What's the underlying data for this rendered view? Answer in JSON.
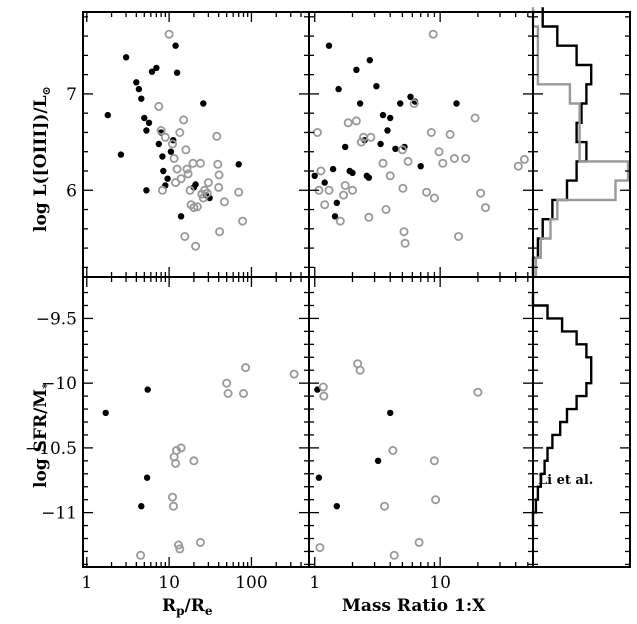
{
  "figure": {
    "colors": {
      "filled_points": "#000000",
      "open_points": "#999999",
      "frame": "#000000"
    },
    "x_axis_labels": {
      "left_main": "R",
      "left_sub": "p",
      "left_sep": "/R",
      "left_sub2": "e",
      "middle": "Mass Ratio 1:X"
    },
    "y_axis_labels": {
      "top_prefix": "log L([OIII])/L",
      "top_sun_symbol": "⊙",
      "bottom_prefix": "log SFR/M",
      "bottom_sub": "*"
    },
    "annotation": "Li et al.",
    "ticks": {
      "x_log": [
        {
          "v": 1,
          "label": "1"
        },
        {
          "v": 10,
          "label": "10"
        },
        {
          "v": 100,
          "label": "100"
        }
      ],
      "y_top": [
        {
          "v": 6,
          "label": "6"
        },
        {
          "v": 7,
          "label": "7"
        }
      ],
      "y_bottom": [
        {
          "v": -9.5,
          "label": "−9.5"
        },
        {
          "v": -10,
          "label": "−10"
        },
        {
          "v": -10.5,
          "label": "−10.5"
        },
        {
          "v": -11,
          "label": "−11"
        }
      ]
    }
  },
  "chart_data": [
    {
      "type": "scatter",
      "panel": "top-left",
      "xlabel": "Rp/Re",
      "ylabel": "log L([OIII])/L⊙",
      "xscale": "log",
      "xlim": [
        0.9,
        500
      ],
      "ylim": [
        5.1,
        7.85
      ],
      "series": [
        {
          "marker": "filled",
          "points": [
            [
              1.8,
              6.78
            ],
            [
              2.6,
              6.37
            ],
            [
              3.0,
              7.38
            ],
            [
              4.0,
              7.12
            ],
            [
              4.3,
              7.05
            ],
            [
              4.6,
              6.95
            ],
            [
              5.0,
              6.75
            ],
            [
              5.3,
              6.62
            ],
            [
              5.7,
              6.7
            ],
            [
              5.3,
              6.0
            ],
            [
              6.2,
              7.23
            ],
            [
              7.0,
              7.27
            ],
            [
              7.5,
              6.48
            ],
            [
              8.0,
              6.6
            ],
            [
              8.3,
              6.35
            ],
            [
              8.5,
              6.2
            ],
            [
              9.0,
              6.05
            ],
            [
              9.6,
              6.12
            ],
            [
              10.5,
              6.4
            ],
            [
              11.2,
              6.52
            ],
            [
              12.0,
              7.5
            ],
            [
              12.5,
              7.22
            ],
            [
              14.0,
              5.73
            ],
            [
              20.0,
              6.03
            ],
            [
              21.0,
              6.06
            ],
            [
              26.0,
              6.9
            ],
            [
              28.0,
              5.95
            ],
            [
              31.0,
              5.92
            ],
            [
              70.0,
              6.27
            ]
          ]
        },
        {
          "marker": "open",
          "points": [
            [
              7.5,
              6.87
            ],
            [
              8.0,
              6.62
            ],
            [
              8.3,
              6.0
            ],
            [
              9.0,
              6.55
            ],
            [
              10.0,
              7.62
            ],
            [
              11.0,
              6.48
            ],
            [
              11.5,
              6.33
            ],
            [
              12.0,
              6.08
            ],
            [
              12.5,
              6.22
            ],
            [
              13.5,
              6.6
            ],
            [
              14.0,
              6.12
            ],
            [
              15.0,
              6.73
            ],
            [
              15.5,
              5.52
            ],
            [
              16.0,
              6.42
            ],
            [
              16.5,
              6.22
            ],
            [
              17.0,
              6.17
            ],
            [
              18.0,
              6.0
            ],
            [
              18.5,
              5.85
            ],
            [
              19.5,
              6.28
            ],
            [
              20.0,
              5.82
            ],
            [
              21.0,
              5.42
            ],
            [
              22.0,
              5.83
            ],
            [
              24.0,
              6.28
            ],
            [
              25.0,
              5.96
            ],
            [
              26.0,
              5.92
            ],
            [
              27.0,
              6.0
            ],
            [
              29.0,
              5.97
            ],
            [
              30.0,
              6.08
            ],
            [
              38.0,
              6.56
            ],
            [
              39.0,
              6.27
            ],
            [
              40.0,
              6.03
            ],
            [
              40.5,
              6.16
            ],
            [
              41.0,
              5.57
            ],
            [
              47.0,
              5.88
            ],
            [
              70.0,
              5.98
            ],
            [
              78.0,
              5.68
            ]
          ]
        }
      ]
    },
    {
      "type": "scatter",
      "panel": "top-middle",
      "xlabel": "Mass Ratio 1:X",
      "ylabel": "log L([OIII])/L⊙",
      "xscale": "log",
      "xlim": [
        0.9,
        55
      ],
      "ylim": [
        5.1,
        7.85
      ],
      "series": [
        {
          "marker": "filled",
          "points": [
            [
              1.0,
              6.15
            ],
            [
              1.2,
              6.08
            ],
            [
              1.3,
              7.5
            ],
            [
              1.4,
              6.22
            ],
            [
              1.45,
              5.73
            ],
            [
              1.5,
              5.87
            ],
            [
              1.55,
              7.05
            ],
            [
              1.75,
              6.45
            ],
            [
              1.9,
              6.2
            ],
            [
              2.0,
              6.18
            ],
            [
              2.15,
              7.25
            ],
            [
              2.3,
              6.9
            ],
            [
              2.5,
              6.52
            ],
            [
              2.6,
              6.15
            ],
            [
              2.7,
              6.13
            ],
            [
              2.75,
              7.35
            ],
            [
              3.1,
              7.08
            ],
            [
              3.35,
              6.48
            ],
            [
              3.5,
              6.78
            ],
            [
              3.8,
              6.62
            ],
            [
              4.0,
              6.75
            ],
            [
              4.4,
              6.43
            ],
            [
              4.8,
              6.9
            ],
            [
              5.2,
              6.45
            ],
            [
              5.8,
              6.97
            ],
            [
              6.3,
              6.92
            ],
            [
              7.0,
              6.25
            ],
            [
              13.5,
              6.9
            ]
          ]
        },
        {
          "marker": "open",
          "points": [
            [
              1.05,
              6.6
            ],
            [
              1.08,
              6.0
            ],
            [
              1.12,
              6.2
            ],
            [
              1.2,
              5.85
            ],
            [
              1.3,
              6.0
            ],
            [
              1.6,
              5.68
            ],
            [
              1.7,
              5.95
            ],
            [
              1.75,
              6.05
            ],
            [
              1.85,
              6.7
            ],
            [
              2.0,
              6.0
            ],
            [
              2.15,
              6.72
            ],
            [
              2.35,
              6.5
            ],
            [
              2.45,
              6.55
            ],
            [
              2.7,
              5.72
            ],
            [
              2.8,
              6.55
            ],
            [
              3.5,
              6.28
            ],
            [
              3.7,
              5.8
            ],
            [
              4.0,
              6.15
            ],
            [
              5.0,
              6.42
            ],
            [
              5.05,
              6.02
            ],
            [
              5.15,
              5.57
            ],
            [
              5.25,
              5.45
            ],
            [
              5.55,
              6.3
            ],
            [
              6.2,
              6.9
            ],
            [
              7.8,
              5.98
            ],
            [
              8.5,
              6.6
            ],
            [
              8.8,
              7.62
            ],
            [
              9.0,
              5.92
            ],
            [
              9.8,
              6.4
            ],
            [
              10.5,
              6.28
            ],
            [
              12.0,
              6.58
            ],
            [
              13.0,
              6.33
            ],
            [
              14.0,
              5.52
            ],
            [
              16.0,
              6.33
            ],
            [
              19.0,
              6.75
            ],
            [
              21.0,
              5.97
            ],
            [
              23.0,
              5.82
            ],
            [
              42.0,
              6.25
            ],
            [
              47.0,
              6.32
            ]
          ]
        }
      ]
    },
    {
      "type": "area",
      "panel": "top-right",
      "ylabel": "log L([OIII])/L⊙",
      "ylim": [
        5.1,
        7.85
      ],
      "series": [
        {
          "name": "filled-sample histogram",
          "color": "#000000",
          "bins": [
            [
              7.8,
              0.1
            ],
            [
              7.6,
              0.25
            ],
            [
              7.4,
              0.45
            ],
            [
              7.2,
              0.6
            ],
            [
              7.0,
              0.55
            ],
            [
              6.8,
              0.5
            ],
            [
              6.6,
              0.45
            ],
            [
              6.4,
              0.55
            ],
            [
              6.2,
              0.45
            ],
            [
              6.0,
              0.35
            ],
            [
              5.8,
              0.2
            ],
            [
              5.6,
              0.1
            ],
            [
              5.4,
              0.05
            ],
            [
              5.2,
              0.0
            ]
          ]
        },
        {
          "name": "open-sample histogram",
          "color": "#999999",
          "bins": [
            [
              7.8,
              0.0
            ],
            [
              7.6,
              0.05
            ],
            [
              7.4,
              0.05
            ],
            [
              7.2,
              0.05
            ],
            [
              7.0,
              0.38
            ],
            [
              6.8,
              0.48
            ],
            [
              6.6,
              0.48
            ],
            [
              6.4,
              0.48
            ],
            [
              6.2,
              0.98
            ],
            [
              6.0,
              0.85
            ],
            [
              5.8,
              0.25
            ],
            [
              5.6,
              0.18
            ],
            [
              5.4,
              0.08
            ],
            [
              5.2,
              0.03
            ]
          ]
        }
      ]
    },
    {
      "type": "scatter",
      "panel": "bottom-left",
      "xlabel": "Rp/Re",
      "ylabel": "log SFR/M*",
      "xscale": "log",
      "xlim": [
        0.9,
        500
      ],
      "ylim": [
        -11.42,
        -9.18
      ],
      "series": [
        {
          "marker": "filled",
          "points": [
            [
              1.7,
              -10.23
            ],
            [
              4.6,
              -10.95
            ],
            [
              5.4,
              -10.73
            ],
            [
              5.5,
              -10.05
            ]
          ]
        },
        {
          "marker": "open",
          "points": [
            [
              4.5,
              -11.33
            ],
            [
              11.0,
              -10.88
            ],
            [
              11.3,
              -10.95
            ],
            [
              11.5,
              -10.57
            ],
            [
              12.0,
              -10.62
            ],
            [
              12.3,
              -10.52
            ],
            [
              13.0,
              -11.25
            ],
            [
              13.5,
              -11.28
            ],
            [
              14.0,
              -10.5
            ],
            [
              20.0,
              -10.6
            ],
            [
              24.0,
              -11.23
            ],
            [
              50.0,
              -10.0
            ],
            [
              52.0,
              -10.08
            ],
            [
              80.0,
              -10.08
            ],
            [
              85.0,
              -9.88
            ],
            [
              330.0,
              -9.93
            ]
          ]
        }
      ]
    },
    {
      "type": "scatter",
      "panel": "bottom-middle",
      "xlabel": "Mass Ratio 1:X",
      "ylabel": "log SFR/M*",
      "xscale": "log",
      "xlim": [
        0.9,
        55
      ],
      "ylim": [
        -11.42,
        -9.18
      ],
      "series": [
        {
          "marker": "filled",
          "points": [
            [
              1.05,
              -10.05
            ],
            [
              1.08,
              -10.73
            ],
            [
              1.5,
              -10.95
            ],
            [
              3.2,
              -10.6
            ],
            [
              4.0,
              -10.23
            ]
          ]
        },
        {
          "marker": "open",
          "points": [
            [
              1.1,
              -11.27
            ],
            [
              1.17,
              -10.03
            ],
            [
              1.18,
              -10.1
            ],
            [
              2.2,
              -9.85
            ],
            [
              2.3,
              -9.9
            ],
            [
              3.6,
              -10.95
            ],
            [
              4.2,
              -10.52
            ],
            [
              4.3,
              -11.33
            ],
            [
              6.8,
              -11.23
            ],
            [
              9.0,
              -10.6
            ],
            [
              9.2,
              -10.9
            ],
            [
              20.0,
              -10.07
            ]
          ]
        }
      ]
    },
    {
      "type": "area",
      "panel": "bottom-right",
      "ylabel": "log SFR/M*",
      "ylim": [
        -11.42,
        -9.18
      ],
      "annotation": "Li et al.",
      "series": [
        {
          "name": "Li et al. histogram",
          "color": "#000000",
          "bins": [
            [
              -9.35,
              0.0
            ],
            [
              -9.45,
              0.15
            ],
            [
              -9.55,
              0.3
            ],
            [
              -9.65,
              0.45
            ],
            [
              -9.75,
              0.55
            ],
            [
              -9.85,
              0.6
            ],
            [
              -9.95,
              0.6
            ],
            [
              -10.05,
              0.55
            ],
            [
              -10.15,
              0.45
            ],
            [
              -10.25,
              0.35
            ],
            [
              -10.35,
              0.28
            ],
            [
              -10.45,
              0.2
            ],
            [
              -10.55,
              0.15
            ],
            [
              -10.65,
              0.12
            ],
            [
              -10.75,
              0.08
            ],
            [
              -10.85,
              0.05
            ],
            [
              -10.95,
              0.03
            ],
            [
              -11.05,
              0.0
            ]
          ]
        }
      ]
    }
  ]
}
